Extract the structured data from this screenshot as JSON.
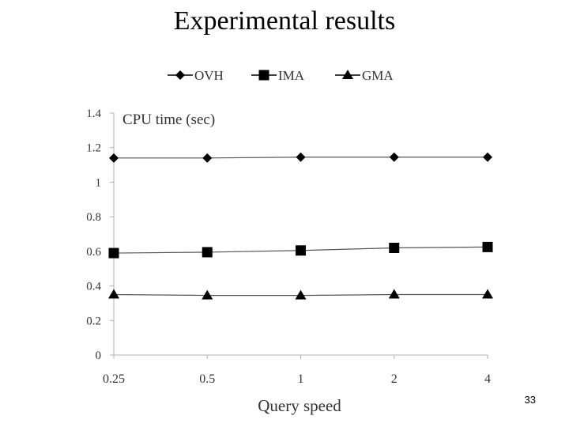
{
  "slide": {
    "title": "Experimental results",
    "page_number": "33"
  },
  "chart_data": {
    "type": "line",
    "title": "",
    "ylabel": "CPU time (sec)",
    "xlabel": "Query speed",
    "categories": [
      "0.25",
      "0.5",
      "1",
      "2",
      "4"
    ],
    "ylim": [
      0,
      1.4
    ],
    "yticks": [
      "0",
      "0.2",
      "0.4",
      "0.6",
      "0.8",
      "1",
      "1.2",
      "1.4"
    ],
    "legend_position": "top",
    "series": [
      {
        "name": "OVH",
        "marker": "diamond",
        "values": [
          1.14,
          1.14,
          1.145,
          1.145,
          1.145
        ]
      },
      {
        "name": "IMA",
        "marker": "square",
        "values": [
          0.59,
          0.595,
          0.605,
          0.62,
          0.625
        ]
      },
      {
        "name": "GMA",
        "marker": "triangle",
        "values": [
          0.35,
          0.345,
          0.345,
          0.35,
          0.35
        ]
      }
    ],
    "colors": {
      "line": "#555555",
      "marker": "#000000",
      "axis": "#b0b0b0"
    }
  }
}
